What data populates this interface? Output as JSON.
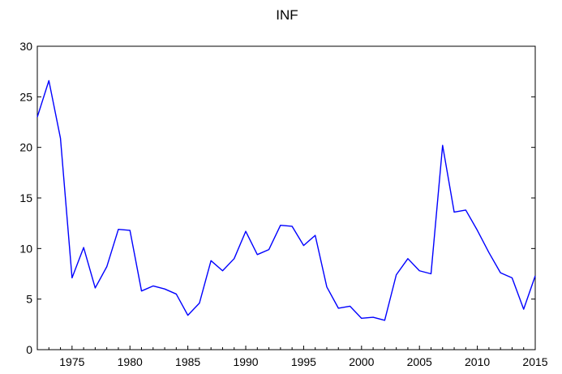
{
  "chart_data": {
    "type": "line",
    "title": "INF",
    "xlabel": "",
    "ylabel": "",
    "xlim": [
      1972,
      2015
    ],
    "ylim": [
      0,
      30
    ],
    "x_ticks": [
      1975,
      1980,
      1985,
      1990,
      1995,
      2000,
      2005,
      2010,
      2015
    ],
    "y_ticks": [
      0,
      5,
      10,
      15,
      20,
      25,
      30
    ],
    "grid": false,
    "line_color": "#0000ff",
    "series": [
      {
        "x": [
          1972,
          1973,
          1974,
          1975,
          1976,
          1977,
          1978,
          1979,
          1980,
          1981,
          1982,
          1983,
          1984,
          1985,
          1986,
          1987,
          1988,
          1989,
          1990,
          1991,
          1992,
          1993,
          1994,
          1995,
          1996,
          1997,
          1998,
          1999,
          2000,
          2001,
          2002,
          2003,
          2004,
          2005,
          2006,
          2007,
          2008,
          2009,
          2010,
          2011,
          2012,
          2013,
          2014,
          2015
        ],
        "values": [
          23.0,
          26.6,
          20.9,
          7.1,
          10.1,
          6.1,
          8.2,
          11.9,
          11.8,
          5.8,
          6.3,
          6.0,
          5.5,
          3.4,
          4.6,
          8.8,
          7.8,
          9.0,
          11.7,
          9.4,
          9.9,
          12.3,
          12.2,
          10.3,
          11.3,
          6.2,
          4.1,
          4.3,
          3.1,
          3.2,
          2.9,
          7.4,
          9.0,
          7.8,
          7.5,
          20.2,
          13.6,
          13.8,
          11.8,
          9.6,
          7.6,
          7.1,
          4.0,
          7.3
        ]
      }
    ]
  }
}
